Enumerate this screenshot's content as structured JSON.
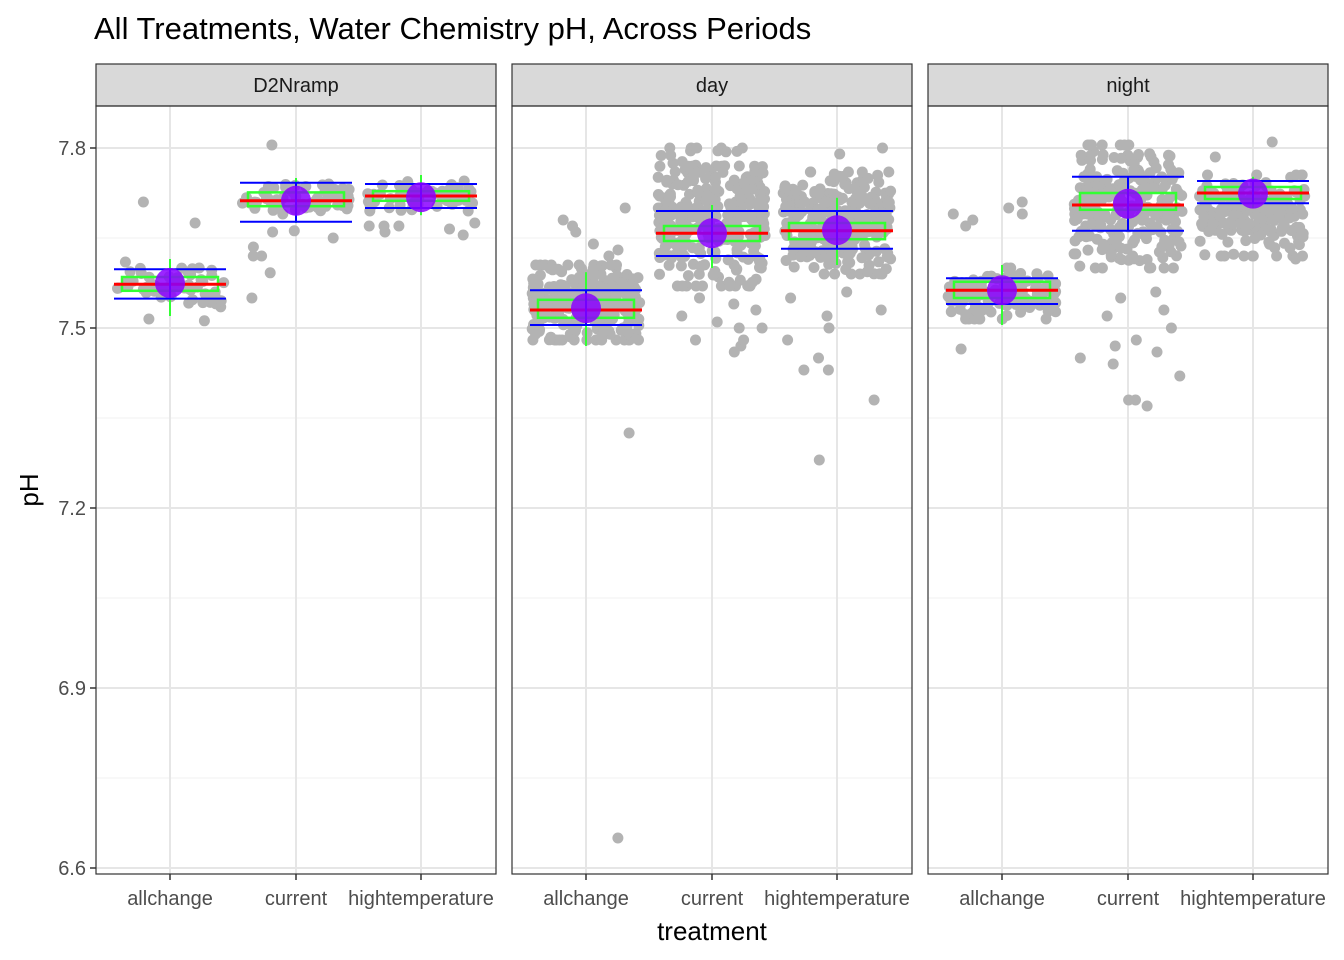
{
  "chart_data": {
    "type": "scatter",
    "title": "All Treatments, Water Chemistry pH, Across Periods",
    "xlabel": "treatment",
    "ylabel": "pH",
    "ylim": [
      6.59,
      7.87
    ],
    "yticks": [
      "6.6",
      "6.9",
      "7.2",
      "7.5",
      "7.8"
    ],
    "categories": [
      "allchange",
      "current",
      "hightemperature"
    ],
    "grid": true,
    "facets": [
      {
        "label": "D2Nramp",
        "groups": [
          {
            "treatment": "allchange",
            "mean": 7.575,
            "median": 7.573,
            "q1": 7.562,
            "q3": 7.585,
            "sd_low": 7.549,
            "sd_high": 7.598,
            "whisker_low": 7.52,
            "whisker_high": 7.615,
            "n_points": 60,
            "range": [
              7.535,
              7.61
            ],
            "outliers": [
              7.71,
              7.675,
              7.515,
              7.512
            ]
          },
          {
            "treatment": "current",
            "mean": 7.712,
            "median": 7.712,
            "q1": 7.703,
            "q3": 7.726,
            "sd_low": 7.677,
            "sd_high": 7.742,
            "whisker_low": 7.675,
            "whisker_high": 7.75,
            "n_points": 60,
            "range": [
              7.69,
              7.74
            ],
            "outliers": [
              7.805,
              7.592,
              7.55,
              7.62,
              7.635,
              7.66,
              7.65,
              7.62,
              7.662
            ]
          },
          {
            "treatment": "hightemperature",
            "mean": 7.718,
            "median": 7.72,
            "q1": 7.712,
            "q3": 7.728,
            "sd_low": 7.7,
            "sd_high": 7.74,
            "whisker_low": 7.688,
            "whisker_high": 7.755,
            "n_points": 60,
            "range": [
              7.695,
              7.745
            ],
            "outliers": [
              7.67,
              7.655,
              7.675,
              7.665,
              7.67,
              7.66,
              7.67
            ]
          }
        ]
      },
      {
        "label": "day",
        "groups": [
          {
            "treatment": "allchange",
            "mean": 7.533,
            "median": 7.53,
            "q1": 7.517,
            "q3": 7.547,
            "sd_low": 7.505,
            "sd_high": 7.563,
            "whisker_low": 7.47,
            "whisker_high": 7.593,
            "n_points": 300,
            "range": [
              7.48,
              7.605
            ],
            "outliers": [
              7.64,
              7.66,
              7.68,
              7.7,
              7.67,
              7.325,
              6.65,
              7.63,
              7.62
            ]
          },
          {
            "treatment": "current",
            "mean": 7.658,
            "median": 7.658,
            "q1": 7.645,
            "q3": 7.67,
            "sd_low": 7.62,
            "sd_high": 7.695,
            "whisker_low": 7.6,
            "whisker_high": 7.705,
            "n_points": 300,
            "range": [
              7.57,
              7.8
            ],
            "outliers": [
              7.47,
              7.46,
              7.48,
              7.5,
              7.48,
              7.51,
              7.53,
              7.52,
              7.54,
              7.55,
              7.5
            ]
          },
          {
            "treatment": "hightemperature",
            "mean": 7.663,
            "median": 7.662,
            "q1": 7.648,
            "q3": 7.675,
            "sd_low": 7.632,
            "sd_high": 7.695,
            "whisker_low": 7.605,
            "whisker_high": 7.717,
            "n_points": 300,
            "range": [
              7.59,
              7.76
            ],
            "outliers": [
              7.28,
              7.38,
              7.43,
              7.43,
              7.45,
              7.48,
              7.5,
              7.52,
              7.55,
              7.56,
              7.53,
              7.8,
              7.79
            ]
          }
        ]
      },
      {
        "label": "night",
        "groups": [
          {
            "treatment": "allchange",
            "mean": 7.563,
            "median": 7.563,
            "q1": 7.55,
            "q3": 7.577,
            "sd_low": 7.54,
            "sd_high": 7.583,
            "whisker_low": 7.505,
            "whisker_high": 7.605,
            "n_points": 150,
            "range": [
              7.515,
              7.6
            ],
            "outliers": [
              7.71,
              7.69,
              7.68,
              7.7,
              7.69,
              7.465,
              7.67
            ]
          },
          {
            "treatment": "current",
            "mean": 7.707,
            "median": 7.705,
            "q1": 7.697,
            "q3": 7.725,
            "sd_low": 7.662,
            "sd_high": 7.752,
            "whisker_low": 7.665,
            "whisker_high": 7.75,
            "n_points": 250,
            "range": [
              7.6,
              7.805
            ],
            "outliers": [
              7.37,
              7.38,
              7.42,
              7.38,
              7.45,
              7.47,
              7.44,
              7.5,
              7.52,
              7.48,
              7.46,
              7.53,
              7.55,
              7.56
            ]
          },
          {
            "treatment": "hightemperature",
            "mean": 7.724,
            "median": 7.725,
            "q1": 7.715,
            "q3": 7.735,
            "sd_low": 7.708,
            "sd_high": 7.745,
            "whisker_low": 7.7,
            "whisker_high": 7.752,
            "n_points": 200,
            "range": [
              7.62,
              7.755
            ],
            "outliers": [
              7.81,
              7.785,
              7.615,
              7.62
            ]
          }
        ]
      }
    ],
    "colors": {
      "points": "#b3b3b3",
      "box": "#33ff33",
      "median": "#ff0000",
      "sd": "#0000ff",
      "mean": "#8a00ff",
      "strip_fill": "#d9d9d9",
      "panel_border": "#333333",
      "grid_major": "#e6e6e6",
      "grid_minor": "#f2f2f2"
    }
  }
}
